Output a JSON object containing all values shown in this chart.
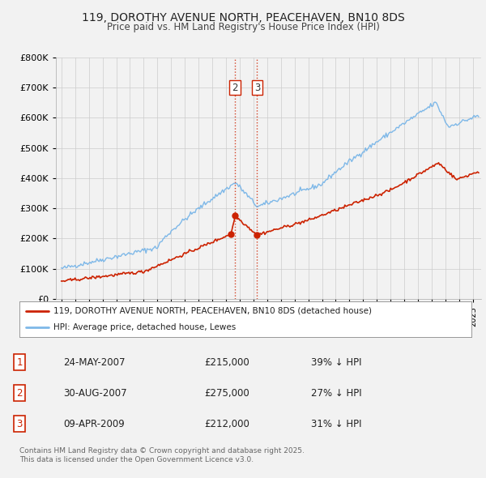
{
  "title": "119, DOROTHY AVENUE NORTH, PEACEHAVEN, BN10 8DS",
  "subtitle": "Price paid vs. HM Land Registry's House Price Index (HPI)",
  "legend_label_red": "119, DOROTHY AVENUE NORTH, PEACEHAVEN, BN10 8DS (detached house)",
  "legend_label_blue": "HPI: Average price, detached house, Lewes",
  "footer": "Contains HM Land Registry data © Crown copyright and database right 2025.\nThis data is licensed under the Open Government Licence v3.0.",
  "transactions": [
    {
      "num": 1,
      "date": "24-MAY-2007",
      "price": "£215,000",
      "rel": "39% ↓ HPI",
      "year": 2007.38,
      "price_val": 215000,
      "show_vline": false
    },
    {
      "num": 2,
      "date": "30-AUG-2007",
      "price": "£275,000",
      "rel": "27% ↓ HPI",
      "year": 2007.66,
      "price_val": 275000,
      "show_vline": true
    },
    {
      "num": 3,
      "date": "09-APR-2009",
      "price": "£212,000",
      "rel": "31% ↓ HPI",
      "year": 2009.27,
      "price_val": 212000,
      "show_vline": true
    }
  ],
  "ylim": [
    0,
    800000
  ],
  "yticks": [
    0,
    100000,
    200000,
    300000,
    400000,
    500000,
    600000,
    700000,
    800000
  ],
  "background_color": "#f2f2f2",
  "plot_bg": "#f2f2f2",
  "red_color": "#cc2200",
  "blue_color": "#7eb8e8"
}
